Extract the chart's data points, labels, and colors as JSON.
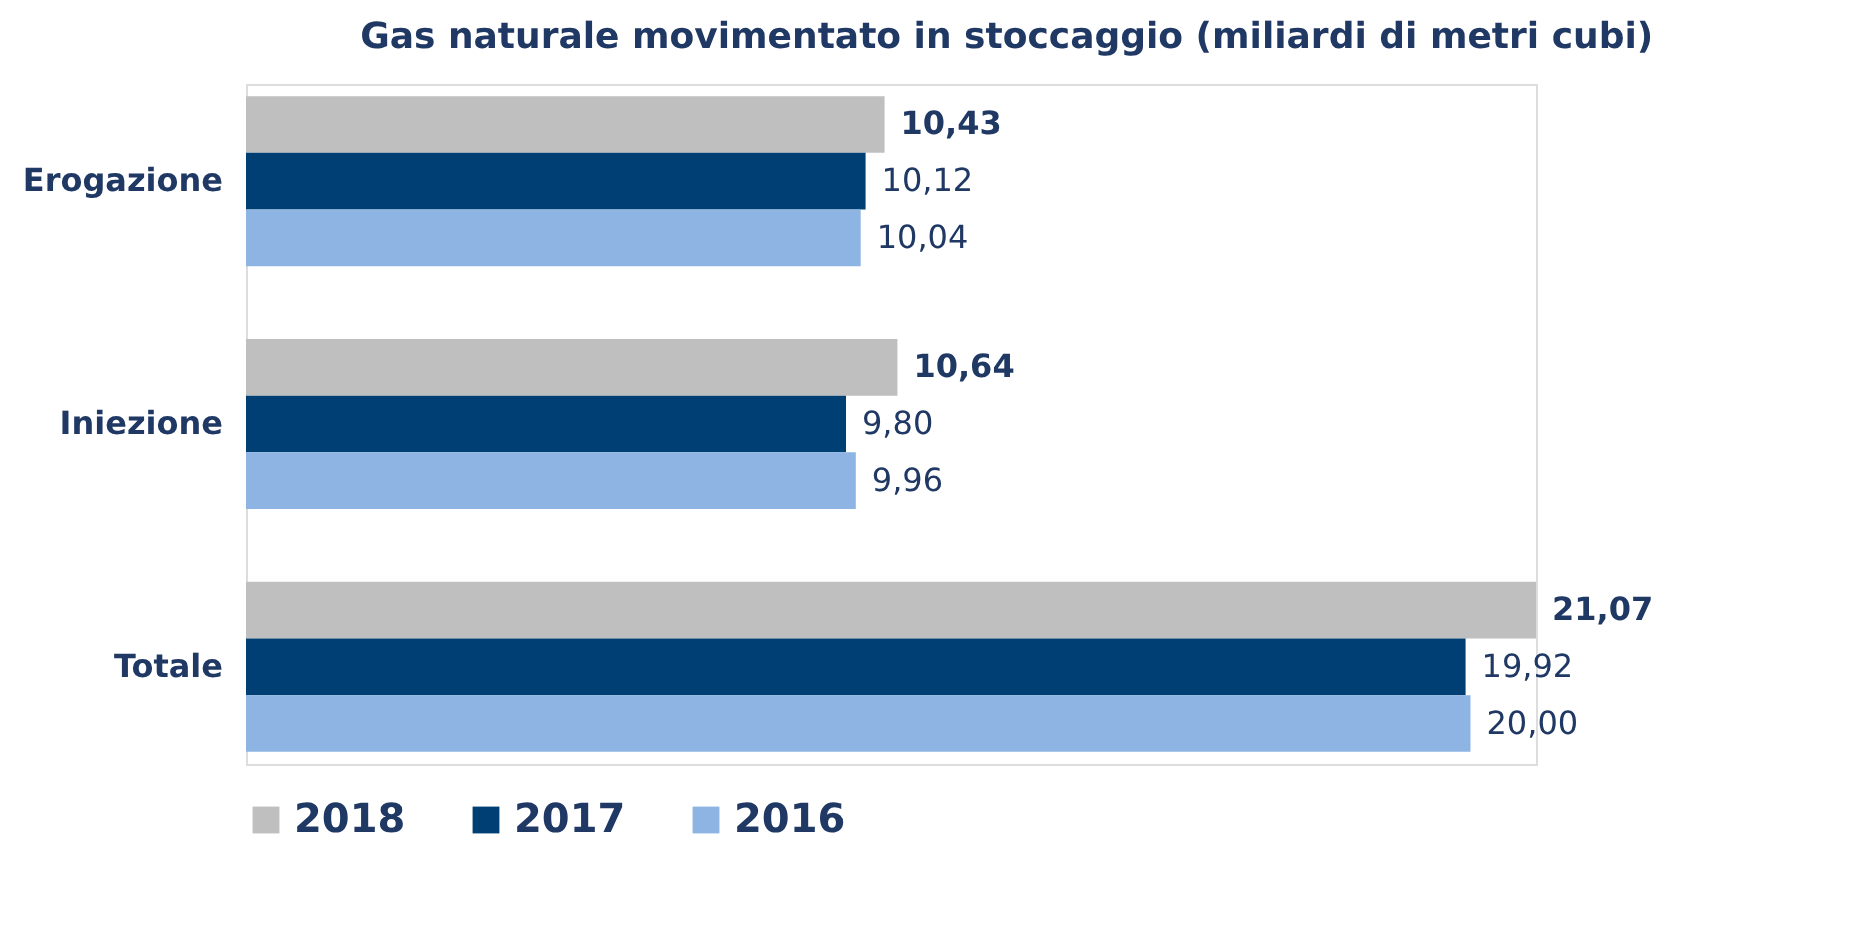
{
  "chart_data": {
    "type": "bar",
    "orientation": "horizontal",
    "title": "Gas naturale movimentato in stoccaggio (miliardi di metri cubi)",
    "categories": [
      "Erogazione",
      "Iniezione",
      "Totale"
    ],
    "series": [
      {
        "name": "2018",
        "color": "#bfbfbf",
        "values": [
          10.43,
          10.64,
          21.07
        ],
        "value_labels": [
          "10,43",
          "10,64",
          "21,07"
        ]
      },
      {
        "name": "2017",
        "color": "#003f73",
        "values": [
          10.12,
          9.8,
          19.92
        ],
        "value_labels": [
          "10,12",
          "9,80",
          "19,92"
        ]
      },
      {
        "name": "2016",
        "color": "#8eb4e3",
        "values": [
          10.04,
          9.96,
          20.0
        ],
        "value_labels": [
          "10,04",
          "9,96",
          "20,00"
        ]
      }
    ],
    "legend": "bottom",
    "grid": false
  }
}
